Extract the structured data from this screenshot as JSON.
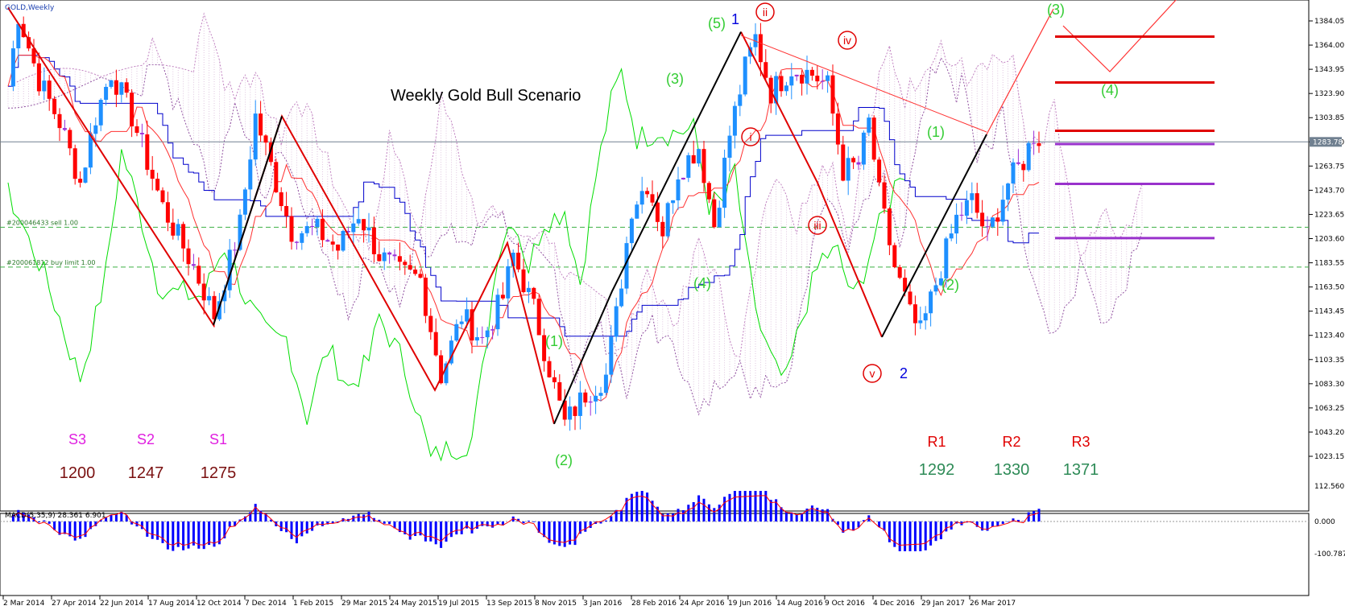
{
  "header": {
    "symbol": "GOLD,Weekly"
  },
  "chart_data": {
    "type": "candlestick",
    "title": "Weekly Gold Bull Scenario",
    "current_price": "1283.78",
    "y_ticks": [
      "1384.05",
      "1364.00",
      "1343.95",
      "1323.90",
      "1303.85",
      "1283.80",
      "1263.75",
      "1243.70",
      "1223.65",
      "1203.60",
      "1183.55",
      "1163.50",
      "1143.45",
      "1123.40",
      "1103.35",
      "1083.30",
      "1063.25",
      "1043.20",
      "1023.15"
    ],
    "x_ticks": [
      "2 Mar 2014",
      "27 Apr 2014",
      "22 Jun 2014",
      "17 Aug 2014",
      "12 Oct 2014",
      "7 Dec 2014",
      "1 Feb 2015",
      "29 Mar 2015",
      "24 May 2015",
      "19 Jul 2015",
      "13 Sep 2015",
      "8 Nov 2015",
      "3 Jan 2016",
      "28 Feb 2016",
      "24 Apr 2016",
      "19 Jun 2016",
      "14 Aug 2016",
      "9 Oct 2016",
      "4 Dec 2016",
      "29 Jan 2017",
      "26 Mar 2017"
    ],
    "order_lines": [
      {
        "label": "#200046433 sell 1.00",
        "price": 1213
      },
      {
        "label": "#200061812 buy limit 1.00",
        "price": 1180
      }
    ],
    "pivots": {
      "support": [
        {
          "name": "S3",
          "value": "1200"
        },
        {
          "name": "S2",
          "value": "1247"
        },
        {
          "name": "S1",
          "value": "1275"
        }
      ],
      "resistance": [
        {
          "name": "R1",
          "value": "1292"
        },
        {
          "name": "R2",
          "value": "1330"
        },
        {
          "name": "R3",
          "value": "1371"
        }
      ]
    },
    "wave_labels_green": [
      "(5)",
      "(3)",
      "(4)",
      "(1)",
      "(2)",
      "(1)",
      "(2)",
      "(3)",
      "(4)"
    ],
    "wave_labels_blue": [
      "1",
      "2"
    ],
    "wave_labels_red": [
      "ii",
      "i",
      "iv",
      "iii",
      "v"
    ],
    "levels_red": [
      1371,
      1333,
      1293
    ],
    "levels_purple": [
      1282,
      1249,
      1204
    ],
    "macd": {
      "label": "MACD(5,35,9) 28.361 6.901",
      "y_ticks": [
        "112.560",
        "0.000",
        "-100.787"
      ]
    },
    "colors": {
      "bull": "#1e90ff",
      "bear": "#ff0000",
      "neutral": "#9b30d9",
      "ichimoku_span_a": "#ff3030",
      "ichimoku_kijun": "#0000cc",
      "chikou": "#00dd00",
      "macd_hist": "#0000ff",
      "macd_signal": "#ff0000"
    }
  }
}
